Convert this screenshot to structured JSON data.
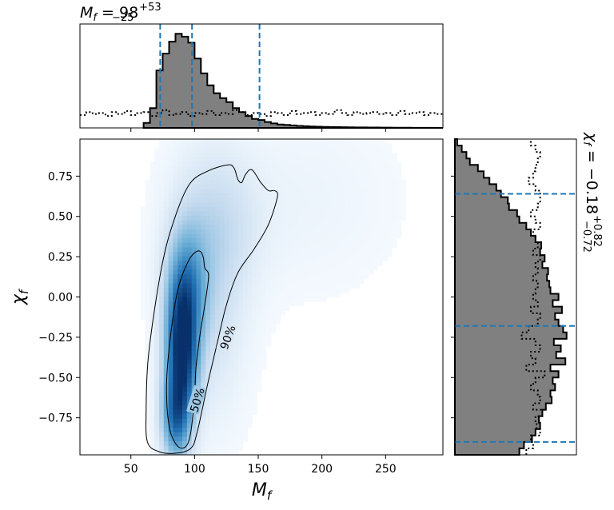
{
  "chart_data": {
    "type": "heatmap",
    "title": "",
    "xlabel_main": "M",
    "xlabel_sub": "f",
    "ylabel_main": "χ",
    "ylabel_sub": "f",
    "xlim": [
      10,
      295
    ],
    "ylim": [
      -0.98,
      0.98
    ],
    "x_ticks": [
      50,
      100,
      150,
      200,
      250
    ],
    "y_ticks": [
      0.75,
      0.5,
      0.25,
      0.0,
      -0.25,
      -0.5,
      -0.75
    ],
    "x_tick_labels": [
      "50",
      "100",
      "150",
      "200",
      "250"
    ],
    "y_tick_labels": [
      "0.75",
      "0.50",
      "0.25",
      "0.00",
      "−0.25",
      "−0.50",
      "−0.75"
    ],
    "colormap": [
      "#f7fbff",
      "#c6dbef",
      "#6baed6",
      "#2171b5",
      "#08306b"
    ],
    "contour_labels": [
      "50%",
      "90%"
    ],
    "contour_50": [
      [
        86,
        -0.92
      ],
      [
        80,
        -0.8
      ],
      [
        78,
        -0.55
      ],
      [
        81,
        -0.25
      ],
      [
        87,
        0.05
      ],
      [
        95,
        0.22
      ],
      [
        101,
        0.28
      ],
      [
        105,
        0.28
      ],
      [
        107,
        0.24
      ],
      [
        108,
        0.18
      ],
      [
        111,
        0.13
      ],
      [
        108,
        -0.05
      ],
      [
        104,
        -0.25
      ],
      [
        101,
        -0.45
      ],
      [
        100,
        -0.62
      ],
      [
        97,
        -0.84
      ],
      [
        93,
        -0.93
      ]
    ],
    "contour_90": [
      [
        72,
        -0.96
      ],
      [
        63,
        -0.9
      ],
      [
        62,
        -0.7
      ],
      [
        64,
        -0.35
      ],
      [
        74,
        0.18
      ],
      [
        84,
        0.48
      ],
      [
        96,
        0.7
      ],
      [
        110,
        0.78
      ],
      [
        126,
        0.82
      ],
      [
        131,
        0.8
      ],
      [
        134,
        0.73
      ],
      [
        137,
        0.71
      ],
      [
        140,
        0.76
      ],
      [
        145,
        0.79
      ],
      [
        152,
        0.71
      ],
      [
        158,
        0.66
      ],
      [
        163,
        0.66
      ],
      [
        165,
        0.62
      ],
      [
        158,
        0.45
      ],
      [
        147,
        0.3
      ],
      [
        134,
        0.15
      ],
      [
        125,
        -0.05
      ],
      [
        118,
        -0.28
      ],
      [
        110,
        -0.55
      ],
      [
        102,
        -0.84
      ],
      [
        97,
        -0.94
      ],
      [
        85,
        -0.97
      ]
    ],
    "density_bumps": [
      {
        "mx": 90,
        "my": -0.35,
        "sx": 8,
        "sy": 0.28,
        "w": 1.0
      },
      {
        "mx": 94,
        "my": 0.05,
        "sx": 10,
        "sy": 0.25,
        "w": 0.45
      },
      {
        "mx": 85,
        "my": -0.75,
        "sx": 7,
        "sy": 0.17,
        "w": 0.55
      },
      {
        "mx": 120,
        "my": 0.45,
        "sx": 22,
        "sy": 0.28,
        "w": 0.1
      },
      {
        "mx": 110,
        "my": 0.05,
        "sx": 18,
        "sy": 0.45,
        "w": 0.14
      },
      {
        "mx": 185,
        "my": 0.6,
        "sx": 45,
        "sy": 0.35,
        "w": 0.02
      }
    ],
    "mass_hist": {
      "bin_start": 60,
      "bin_width": 5,
      "counts": [
        0.05,
        0.2,
        0.58,
        0.75,
        0.87,
        0.95,
        0.92,
        0.86,
        0.7,
        0.55,
        0.43,
        0.35,
        0.3,
        0.26,
        0.2,
        0.16,
        0.12,
        0.09,
        0.08,
        0.06,
        0.045,
        0.035,
        0.03,
        0.025,
        0.02,
        0.017,
        0.014,
        0.012,
        0.01,
        0.009,
        0.008,
        0.007,
        0.006,
        0.005,
        0.005,
        0.004,
        0.004,
        0.003,
        0.003,
        0.002,
        0.002,
        0.002,
        0.001,
        0.001,
        0.001,
        0.001,
        0.0,
        0.0
      ],
      "prior": [
        0.13,
        0.16,
        0.14,
        0.15,
        0.12,
        0.16,
        0.14,
        0.17,
        0.13,
        0.15,
        0.16,
        0.12,
        0.15,
        0.18,
        0.13,
        0.14,
        0.16,
        0.12,
        0.15,
        0.14,
        0.17,
        0.13,
        0.15,
        0.14,
        0.18,
        0.16,
        0.13,
        0.15,
        0.14,
        0.12,
        0.16,
        0.15,
        0.13,
        0.17,
        0.14,
        0.15,
        0.16,
        0.13,
        0.15,
        0.14,
        0.18,
        0.15,
        0.13,
        0.16,
        0.14,
        0.15,
        0.16,
        0.14,
        0.15,
        0.13,
        0.17,
        0.14,
        0.15,
        0.16,
        0.13,
        0.15,
        0.14
      ],
      "prior_bin_start": 10,
      "prior_bin_width": 5,
      "quantiles": [
        73,
        98,
        151
      ]
    },
    "spin_hist": {
      "bin_start": -0.98,
      "bin_width": 0.04,
      "counts": [
        0.56,
        0.6,
        0.67,
        0.7,
        0.74,
        0.73,
        0.76,
        0.79,
        0.84,
        0.83,
        0.87,
        0.85,
        0.9,
        0.83,
        0.96,
        0.88,
        0.92,
        0.86,
        0.97,
        0.94,
        0.9,
        0.87,
        0.93,
        0.85,
        0.9,
        0.83,
        0.82,
        0.8,
        0.81,
        0.76,
        0.78,
        0.74,
        0.75,
        0.7,
        0.66,
        0.62,
        0.56,
        0.54,
        0.47,
        0.46,
        0.4,
        0.36,
        0.3,
        0.25,
        0.2,
        0.13,
        0.1,
        0.06,
        0.02
      ],
      "prior": [
        0.62,
        0.68,
        0.66,
        0.74,
        0.71,
        0.7,
        0.76,
        0.68,
        0.74,
        0.72,
        0.66,
        0.7,
        0.78,
        0.62,
        0.7,
        0.66,
        0.74,
        0.7,
        0.58,
        0.64,
        0.72,
        0.74,
        0.66,
        0.72,
        0.68,
        0.7,
        0.72,
        0.68,
        0.72,
        0.7,
        0.74,
        0.68,
        0.72,
        0.7,
        0.68,
        0.74,
        0.7,
        0.66,
        0.72,
        0.74,
        0.74,
        0.7,
        0.64,
        0.68,
        0.7,
        0.72,
        0.74,
        0.7,
        0.66
      ],
      "quantiles": [
        -0.9,
        -0.18,
        0.64
      ]
    },
    "mass_summary": {
      "symbol": "M",
      "subscript": "f",
      "text": " = 98",
      "plus": "+53",
      "minus": "−25"
    },
    "spin_summary": {
      "symbol": "χ",
      "subscript": "f",
      "text": " = −0.18",
      "plus": "+0.82",
      "minus": "−0.72"
    },
    "colors": {
      "hist_fill": "#808080",
      "quantile_line": "#1f77b4",
      "outline": "#000000"
    }
  }
}
